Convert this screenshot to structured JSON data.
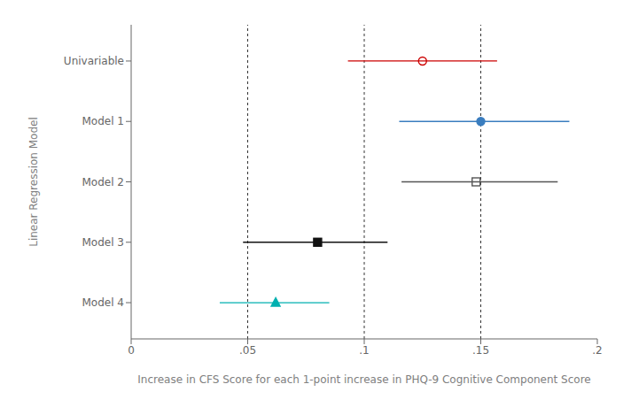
{
  "chart_data": {
    "type": "scatter",
    "orientation": "horizontal",
    "xlabel": "Increase in CFS Score for each 1-point increase in PHQ-9 Cognitive Component Score",
    "ylabel": "Linear Regression Model",
    "categories": [
      "Univariable",
      "Model 1",
      "Model 2",
      "Model 3",
      "Model 4"
    ],
    "values": [
      0.125,
      0.15,
      0.148,
      0.08,
      0.062
    ],
    "ci_low": [
      0.093,
      0.115,
      0.116,
      0.048,
      0.038
    ],
    "ci_high": [
      0.157,
      0.188,
      0.183,
      0.11,
      0.085
    ],
    "colors": [
      "#cc0000",
      "#3a7dbf",
      "#555555",
      "#111111",
      "#00b0b0"
    ],
    "marker": [
      "circle-open",
      "circle",
      "square-open",
      "square",
      "triangle"
    ],
    "xlim": [
      0,
      0.2
    ],
    "xticks": [
      0,
      {
        "value": 0.05,
        "label": ".05"
      },
      {
        "value": 0.1,
        "label": ".1"
      },
      {
        "value": 0.15,
        "label": ".15"
      },
      {
        "value": 0.2,
        "label": ".2"
      }
    ],
    "vlines": [
      0.05,
      0.1,
      0.15
    ],
    "grid": false
  }
}
